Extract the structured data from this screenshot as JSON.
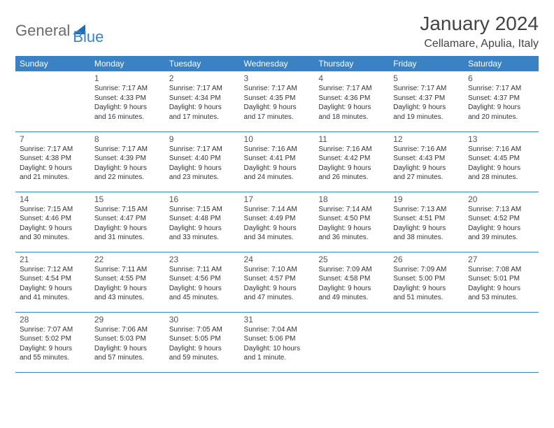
{
  "logo": {
    "text1": "General",
    "text2": "Blue"
  },
  "title": "January 2024",
  "location": "Cellamare, Apulia, Italy",
  "colors": {
    "header_bg": "#3b82c4",
    "header_text": "#ffffff",
    "border": "#3b82c4"
  },
  "dayHeaders": [
    "Sunday",
    "Monday",
    "Tuesday",
    "Wednesday",
    "Thursday",
    "Friday",
    "Saturday"
  ],
  "weeks": [
    [
      null,
      {
        "n": "1",
        "sr": "Sunrise: 7:17 AM",
        "ss": "Sunset: 4:33 PM",
        "d1": "Daylight: 9 hours",
        "d2": "and 16 minutes."
      },
      {
        "n": "2",
        "sr": "Sunrise: 7:17 AM",
        "ss": "Sunset: 4:34 PM",
        "d1": "Daylight: 9 hours",
        "d2": "and 17 minutes."
      },
      {
        "n": "3",
        "sr": "Sunrise: 7:17 AM",
        "ss": "Sunset: 4:35 PM",
        "d1": "Daylight: 9 hours",
        "d2": "and 17 minutes."
      },
      {
        "n": "4",
        "sr": "Sunrise: 7:17 AM",
        "ss": "Sunset: 4:36 PM",
        "d1": "Daylight: 9 hours",
        "d2": "and 18 minutes."
      },
      {
        "n": "5",
        "sr": "Sunrise: 7:17 AM",
        "ss": "Sunset: 4:37 PM",
        "d1": "Daylight: 9 hours",
        "d2": "and 19 minutes."
      },
      {
        "n": "6",
        "sr": "Sunrise: 7:17 AM",
        "ss": "Sunset: 4:37 PM",
        "d1": "Daylight: 9 hours",
        "d2": "and 20 minutes."
      }
    ],
    [
      {
        "n": "7",
        "sr": "Sunrise: 7:17 AM",
        "ss": "Sunset: 4:38 PM",
        "d1": "Daylight: 9 hours",
        "d2": "and 21 minutes."
      },
      {
        "n": "8",
        "sr": "Sunrise: 7:17 AM",
        "ss": "Sunset: 4:39 PM",
        "d1": "Daylight: 9 hours",
        "d2": "and 22 minutes."
      },
      {
        "n": "9",
        "sr": "Sunrise: 7:17 AM",
        "ss": "Sunset: 4:40 PM",
        "d1": "Daylight: 9 hours",
        "d2": "and 23 minutes."
      },
      {
        "n": "10",
        "sr": "Sunrise: 7:16 AM",
        "ss": "Sunset: 4:41 PM",
        "d1": "Daylight: 9 hours",
        "d2": "and 24 minutes."
      },
      {
        "n": "11",
        "sr": "Sunrise: 7:16 AM",
        "ss": "Sunset: 4:42 PM",
        "d1": "Daylight: 9 hours",
        "d2": "and 26 minutes."
      },
      {
        "n": "12",
        "sr": "Sunrise: 7:16 AM",
        "ss": "Sunset: 4:43 PM",
        "d1": "Daylight: 9 hours",
        "d2": "and 27 minutes."
      },
      {
        "n": "13",
        "sr": "Sunrise: 7:16 AM",
        "ss": "Sunset: 4:45 PM",
        "d1": "Daylight: 9 hours",
        "d2": "and 28 minutes."
      }
    ],
    [
      {
        "n": "14",
        "sr": "Sunrise: 7:15 AM",
        "ss": "Sunset: 4:46 PM",
        "d1": "Daylight: 9 hours",
        "d2": "and 30 minutes."
      },
      {
        "n": "15",
        "sr": "Sunrise: 7:15 AM",
        "ss": "Sunset: 4:47 PM",
        "d1": "Daylight: 9 hours",
        "d2": "and 31 minutes."
      },
      {
        "n": "16",
        "sr": "Sunrise: 7:15 AM",
        "ss": "Sunset: 4:48 PM",
        "d1": "Daylight: 9 hours",
        "d2": "and 33 minutes."
      },
      {
        "n": "17",
        "sr": "Sunrise: 7:14 AM",
        "ss": "Sunset: 4:49 PM",
        "d1": "Daylight: 9 hours",
        "d2": "and 34 minutes."
      },
      {
        "n": "18",
        "sr": "Sunrise: 7:14 AM",
        "ss": "Sunset: 4:50 PM",
        "d1": "Daylight: 9 hours",
        "d2": "and 36 minutes."
      },
      {
        "n": "19",
        "sr": "Sunrise: 7:13 AM",
        "ss": "Sunset: 4:51 PM",
        "d1": "Daylight: 9 hours",
        "d2": "and 38 minutes."
      },
      {
        "n": "20",
        "sr": "Sunrise: 7:13 AM",
        "ss": "Sunset: 4:52 PM",
        "d1": "Daylight: 9 hours",
        "d2": "and 39 minutes."
      }
    ],
    [
      {
        "n": "21",
        "sr": "Sunrise: 7:12 AM",
        "ss": "Sunset: 4:54 PM",
        "d1": "Daylight: 9 hours",
        "d2": "and 41 minutes."
      },
      {
        "n": "22",
        "sr": "Sunrise: 7:11 AM",
        "ss": "Sunset: 4:55 PM",
        "d1": "Daylight: 9 hours",
        "d2": "and 43 minutes."
      },
      {
        "n": "23",
        "sr": "Sunrise: 7:11 AM",
        "ss": "Sunset: 4:56 PM",
        "d1": "Daylight: 9 hours",
        "d2": "and 45 minutes."
      },
      {
        "n": "24",
        "sr": "Sunrise: 7:10 AM",
        "ss": "Sunset: 4:57 PM",
        "d1": "Daylight: 9 hours",
        "d2": "and 47 minutes."
      },
      {
        "n": "25",
        "sr": "Sunrise: 7:09 AM",
        "ss": "Sunset: 4:58 PM",
        "d1": "Daylight: 9 hours",
        "d2": "and 49 minutes."
      },
      {
        "n": "26",
        "sr": "Sunrise: 7:09 AM",
        "ss": "Sunset: 5:00 PM",
        "d1": "Daylight: 9 hours",
        "d2": "and 51 minutes."
      },
      {
        "n": "27",
        "sr": "Sunrise: 7:08 AM",
        "ss": "Sunset: 5:01 PM",
        "d1": "Daylight: 9 hours",
        "d2": "and 53 minutes."
      }
    ],
    [
      {
        "n": "28",
        "sr": "Sunrise: 7:07 AM",
        "ss": "Sunset: 5:02 PM",
        "d1": "Daylight: 9 hours",
        "d2": "and 55 minutes."
      },
      {
        "n": "29",
        "sr": "Sunrise: 7:06 AM",
        "ss": "Sunset: 5:03 PM",
        "d1": "Daylight: 9 hours",
        "d2": "and 57 minutes."
      },
      {
        "n": "30",
        "sr": "Sunrise: 7:05 AM",
        "ss": "Sunset: 5:05 PM",
        "d1": "Daylight: 9 hours",
        "d2": "and 59 minutes."
      },
      {
        "n": "31",
        "sr": "Sunrise: 7:04 AM",
        "ss": "Sunset: 5:06 PM",
        "d1": "Daylight: 10 hours",
        "d2": "and 1 minute."
      },
      null,
      null,
      null
    ]
  ]
}
